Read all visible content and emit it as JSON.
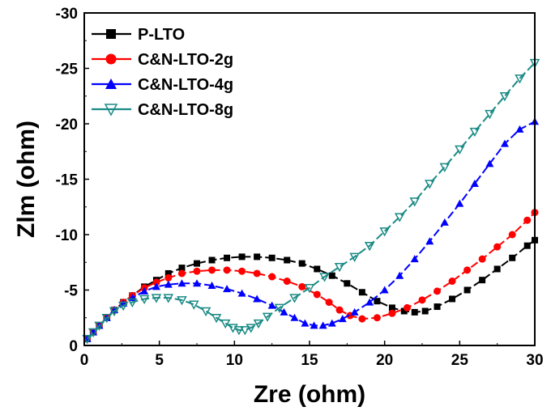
{
  "chart_data": {
    "type": "line",
    "xlabel": "Zre (ohm)",
    "ylabel": "Zlm (ohm)",
    "xlim": [
      0,
      30
    ],
    "ylim": [
      0,
      -30
    ],
    "y_axis_inverted": true,
    "x_ticks": [
      "0",
      "5",
      "10",
      "15",
      "20",
      "25",
      "30"
    ],
    "y_ticks": [
      "0",
      "-5",
      "-10",
      "-15",
      "-20",
      "-25",
      "-30"
    ],
    "grid": false,
    "legend_position": "top-left",
    "series": [
      {
        "name": "P-LTO",
        "color": "#000000",
        "marker": "square",
        "x": [
          0.2,
          0.6,
          1.0,
          1.5,
          2.0,
          2.6,
          3.2,
          4.0,
          4.8,
          5.6,
          6.5,
          7.5,
          8.5,
          9.5,
          10.5,
          11.5,
          12.5,
          13.5,
          14.5,
          15.5,
          16.5,
          17.5,
          18.5,
          19.5,
          20.5,
          21.3,
          22.0,
          22.7,
          23.5,
          24.5,
          25.5,
          26.5,
          27.5,
          28.5,
          29.5,
          30.0
        ],
        "y": [
          -0.6,
          -1.2,
          -1.8,
          -2.5,
          -3.2,
          -3.9,
          -4.5,
          -5.3,
          -5.9,
          -6.5,
          -7.0,
          -7.4,
          -7.7,
          -7.9,
          -8.0,
          -8.0,
          -7.9,
          -7.7,
          -7.4,
          -6.9,
          -6.3,
          -5.6,
          -4.8,
          -4.0,
          -3.4,
          -3.1,
          -3.0,
          -3.1,
          -3.5,
          -4.2,
          -5.0,
          -5.9,
          -6.9,
          -7.9,
          -9.0,
          -9.5
        ]
      },
      {
        "name": "C&N-LTO-2g",
        "color": "#ff0000",
        "marker": "circle",
        "x": [
          0.2,
          0.6,
          1.0,
          1.5,
          2.0,
          2.6,
          3.2,
          4.0,
          4.8,
          5.6,
          6.5,
          7.5,
          8.5,
          9.5,
          10.5,
          11.5,
          12.5,
          13.5,
          14.5,
          15.5,
          16.3,
          17.0,
          17.7,
          18.5,
          19.5,
          20.5,
          21.5,
          22.5,
          23.5,
          24.5,
          25.5,
          26.5,
          27.5,
          28.5,
          29.5,
          30.0
        ],
        "y": [
          -0.6,
          -1.2,
          -1.8,
          -2.5,
          -3.2,
          -3.9,
          -4.5,
          -5.2,
          -5.7,
          -6.1,
          -6.5,
          -6.7,
          -6.8,
          -6.8,
          -6.7,
          -6.5,
          -6.2,
          -5.8,
          -5.3,
          -4.6,
          -3.9,
          -3.2,
          -2.7,
          -2.4,
          -2.5,
          -2.9,
          -3.4,
          -4.1,
          -4.9,
          -5.8,
          -6.8,
          -7.8,
          -8.9,
          -10.0,
          -11.3,
          -12.0
        ]
      },
      {
        "name": "C&N-LTO-4g",
        "color": "#0000ff",
        "marker": "triangle-up",
        "x": [
          0.2,
          0.6,
          1.0,
          1.5,
          2.0,
          2.6,
          3.2,
          4.0,
          4.8,
          5.6,
          6.5,
          7.5,
          8.5,
          9.5,
          10.5,
          11.5,
          12.5,
          13.3,
          14.0,
          14.7,
          15.3,
          15.9,
          16.5,
          17.2,
          18.0,
          19.0,
          20.0,
          21.0,
          22.0,
          23.0,
          24.0,
          25.0,
          26.0,
          27.0,
          28.0,
          29.0,
          30.0
        ],
        "y": [
          -0.6,
          -1.2,
          -1.8,
          -2.5,
          -3.2,
          -3.8,
          -4.3,
          -4.9,
          -5.3,
          -5.5,
          -5.6,
          -5.6,
          -5.4,
          -5.1,
          -4.7,
          -4.2,
          -3.6,
          -3.0,
          -2.5,
          -2.0,
          -1.8,
          -1.8,
          -2.0,
          -2.4,
          -3.0,
          -3.9,
          -5.0,
          -6.3,
          -7.8,
          -9.4,
          -11.1,
          -12.8,
          -14.6,
          -16.4,
          -18.2,
          -19.5,
          -20.2
        ]
      },
      {
        "name": "C&N-LTO-8g",
        "color": "#1a8a85",
        "marker": "triangle-down",
        "x": [
          0.2,
          0.6,
          1.0,
          1.5,
          2.0,
          2.6,
          3.2,
          4.0,
          4.8,
          5.6,
          6.5,
          7.3,
          8.1,
          8.8,
          9.4,
          9.9,
          10.3,
          10.7,
          11.1,
          11.6,
          12.2,
          13.0,
          14.0,
          15.0,
          16.0,
          17.0,
          18.0,
          19.0,
          20.0,
          21.0,
          22.0,
          23.0,
          24.0,
          25.0,
          26.0,
          27.0,
          28.0,
          29.0,
          30.0
        ],
        "y": [
          -0.6,
          -1.2,
          -1.8,
          -2.5,
          -3.1,
          -3.6,
          -3.9,
          -4.2,
          -4.3,
          -4.3,
          -4.1,
          -3.7,
          -3.1,
          -2.5,
          -2.0,
          -1.6,
          -1.4,
          -1.4,
          -1.6,
          -2.0,
          -2.6,
          -3.4,
          -4.3,
          -5.2,
          -6.2,
          -7.1,
          -8.0,
          -9.0,
          -10.3,
          -11.6,
          -13.0,
          -14.6,
          -16.1,
          -17.7,
          -19.3,
          -20.9,
          -22.5,
          -24.1,
          -25.5
        ]
      }
    ]
  }
}
